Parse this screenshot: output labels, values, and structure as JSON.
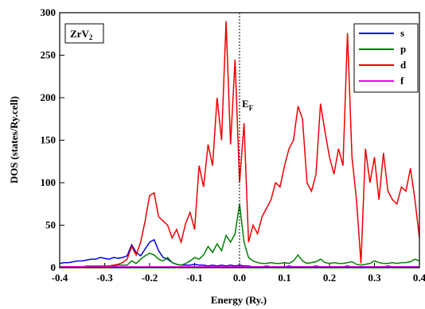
{
  "chart_data": {
    "type": "line",
    "xlabel": "Energy (Ry.)",
    "ylabel": "DOS (states/Ry.cell)",
    "compound_label": {
      "text": "ZrV",
      "subscript": "2"
    },
    "fermi_label": {
      "text": "E",
      "subscript": "F"
    },
    "fermi_level": 0,
    "legend": "upper right",
    "xlim": [
      -0.4,
      0.4
    ],
    "xticks": [
      -0.4,
      -0.3,
      -0.2,
      -0.1,
      {
        "value": 0,
        "label": "0.0"
      },
      0.1,
      0.2,
      0.3,
      0.4
    ],
    "ylim": [
      0,
      300
    ],
    "yticks": [
      0,
      50,
      100,
      150,
      200,
      250,
      300
    ],
    "x": [
      -0.4,
      -0.39,
      -0.38,
      -0.37,
      -0.36,
      -0.35,
      -0.34,
      -0.33,
      -0.32,
      -0.31,
      -0.3,
      -0.29,
      -0.28,
      -0.27,
      -0.26,
      -0.25,
      -0.24,
      -0.23,
      -0.22,
      -0.21,
      -0.2,
      -0.19,
      -0.18,
      -0.17,
      -0.16,
      -0.15,
      -0.14,
      -0.13,
      -0.12,
      -0.11,
      -0.1,
      -0.09,
      -0.08,
      -0.07,
      -0.06,
      -0.05,
      -0.04,
      -0.03,
      -0.02,
      -0.01,
      0,
      0.01,
      0.02,
      0.03,
      0.04,
      0.05,
      0.06,
      0.07,
      0.08,
      0.09,
      0.1,
      0.11,
      0.12,
      0.13,
      0.14,
      0.15,
      0.16,
      0.17,
      0.18,
      0.19,
      0.2,
      0.21,
      0.22,
      0.23,
      0.24,
      0.25,
      0.26,
      0.27,
      0.28,
      0.29,
      0.3,
      0.31,
      0.32,
      0.33,
      0.34,
      0.35,
      0.36,
      0.37,
      0.38,
      0.39,
      0.4
    ],
    "series": [
      {
        "name": "s",
        "color": "#0000ee",
        "values": [
          5,
          6,
          6,
          7,
          8,
          8,
          9,
          10,
          10,
          12,
          11,
          10,
          12,
          11,
          12,
          14,
          27,
          18,
          14,
          22,
          30,
          33,
          20,
          12,
          10,
          6,
          4,
          3,
          3,
          3,
          4,
          3,
          3,
          2,
          3,
          2,
          3,
          2,
          3,
          2,
          3,
          2,
          2,
          1,
          1,
          1,
          2,
          1,
          1,
          1,
          1,
          2,
          1,
          1,
          1,
          1,
          1,
          2,
          1,
          1,
          1,
          1,
          1,
          1,
          2,
          1,
          1,
          1,
          1,
          1,
          1,
          1,
          1,
          2,
          1,
          1,
          1,
          1,
          1,
          1,
          1
        ]
      },
      {
        "name": "p",
        "color": "#008000",
        "values": [
          1,
          1,
          1,
          1,
          1,
          1,
          2,
          2,
          2,
          2,
          2,
          2,
          2,
          3,
          3,
          3,
          8,
          5,
          10,
          14,
          17,
          15,
          10,
          8,
          12,
          6,
          4,
          3,
          5,
          8,
          12,
          10,
          15,
          25,
          18,
          28,
          20,
          38,
          30,
          40,
          75,
          30,
          12,
          8,
          6,
          5,
          5,
          6,
          5,
          5,
          6,
          5,
          8,
          15,
          8,
          5,
          6,
          7,
          10,
          6,
          5,
          6,
          5,
          5,
          6,
          7,
          4,
          3,
          4,
          5,
          8,
          6,
          5,
          5,
          6,
          5,
          6,
          6,
          7,
          10,
          8
        ]
      },
      {
        "name": "d",
        "color": "#ee0000",
        "values": [
          1,
          1,
          1,
          1,
          1,
          1,
          1,
          1,
          1,
          1,
          2,
          2,
          3,
          4,
          6,
          10,
          25,
          15,
          30,
          55,
          85,
          88,
          60,
          55,
          50,
          35,
          45,
          30,
          52,
          65,
          45,
          120,
          95,
          145,
          120,
          200,
          150,
          290,
          145,
          245,
          100,
          170,
          30,
          50,
          40,
          60,
          70,
          80,
          100,
          95,
          120,
          140,
          150,
          190,
          175,
          100,
          90,
          110,
          193,
          160,
          130,
          110,
          140,
          120,
          276,
          130,
          80,
          5,
          140,
          100,
          130,
          80,
          135,
          90,
          80,
          75,
          95,
          90,
          117,
          80,
          35
        ]
      },
      {
        "name": "f",
        "color": "#ee00ee",
        "values": [
          1,
          1,
          1,
          1,
          1,
          1,
          1,
          1,
          1,
          1,
          1,
          1,
          1,
          1,
          1,
          1,
          1,
          1,
          1,
          1,
          1,
          1,
          1,
          1,
          1,
          1,
          1,
          1,
          1,
          1,
          1,
          1,
          1,
          1,
          1,
          1,
          1,
          1,
          1,
          1,
          1,
          1,
          1,
          1,
          1,
          1,
          1,
          1,
          1,
          1,
          1,
          1,
          1,
          1,
          1,
          1,
          1,
          1,
          1,
          1,
          1,
          1,
          1,
          1,
          1,
          1,
          1,
          1,
          1,
          1,
          1,
          1,
          1,
          1,
          1,
          1,
          1,
          1,
          1,
          1,
          1
        ]
      }
    ]
  }
}
